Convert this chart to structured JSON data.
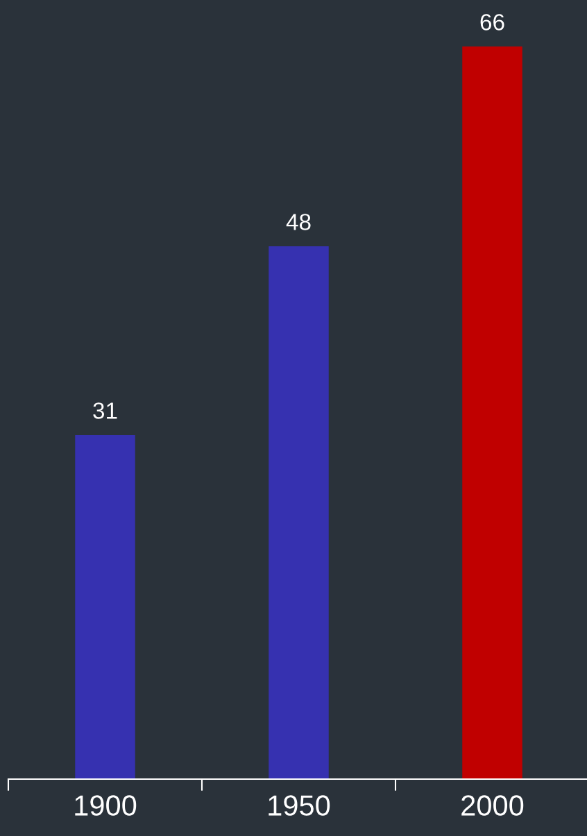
{
  "chart_data": {
    "type": "bar",
    "categories": [
      "1900",
      "1950",
      "2000"
    ],
    "values": [
      31,
      48,
      66
    ],
    "colors": [
      "#3631b0",
      "#3631b0",
      "#c00000"
    ],
    "data_labels": true,
    "grid": false,
    "legend": false
  }
}
